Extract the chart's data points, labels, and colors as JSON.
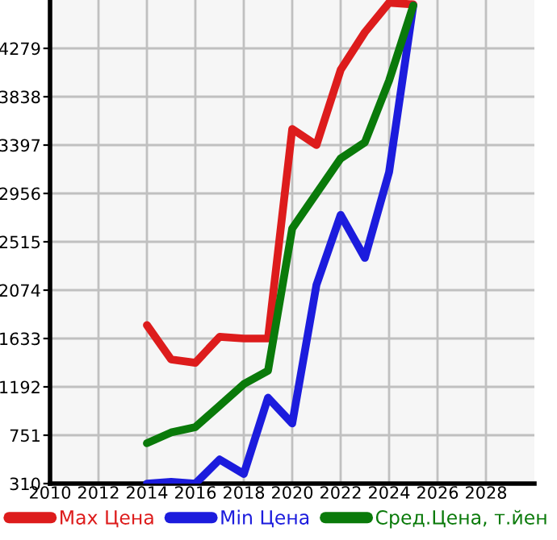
{
  "chart_data": {
    "type": "line",
    "x": [
      2014,
      2015,
      2016,
      2017,
      2018,
      2019,
      2020,
      2021,
      2022,
      2023,
      2024,
      2025
    ],
    "series": [
      {
        "name": "Max Цена",
        "color": "#dd1c1c",
        "values": [
          1755,
          1442,
          1412,
          1648,
          1633,
          1633,
          3544,
          3397,
          4083,
          4426,
          4695,
          4680
        ]
      },
      {
        "name": "Min Цена",
        "color": "#1c1cdd",
        "values": [
          310,
          325,
          310,
          530,
          398,
          1093,
          858,
          2122,
          2760,
          2368,
          3151,
          4670
        ]
      },
      {
        "name": "Сред.Цена, т.йен",
        "color": "#0a7a0a",
        "values": [
          678,
          776,
          825,
          1020,
          1217,
          1339,
          2637,
          2956,
          3275,
          3422,
          3985,
          4670
        ]
      }
    ],
    "xlim": [
      2010,
      2030
    ],
    "xticks": [
      2010,
      2012,
      2014,
      2016,
      2018,
      2020,
      2022,
      2024,
      2026,
      2028
    ],
    "ylim": [
      310,
      4720
    ],
    "yticks": [
      310,
      751,
      1192,
      1633,
      2074,
      2515,
      2956,
      3397,
      3838,
      4279
    ],
    "grid": true,
    "legend": "bottom",
    "marker": "none",
    "line_style": "solid"
  }
}
